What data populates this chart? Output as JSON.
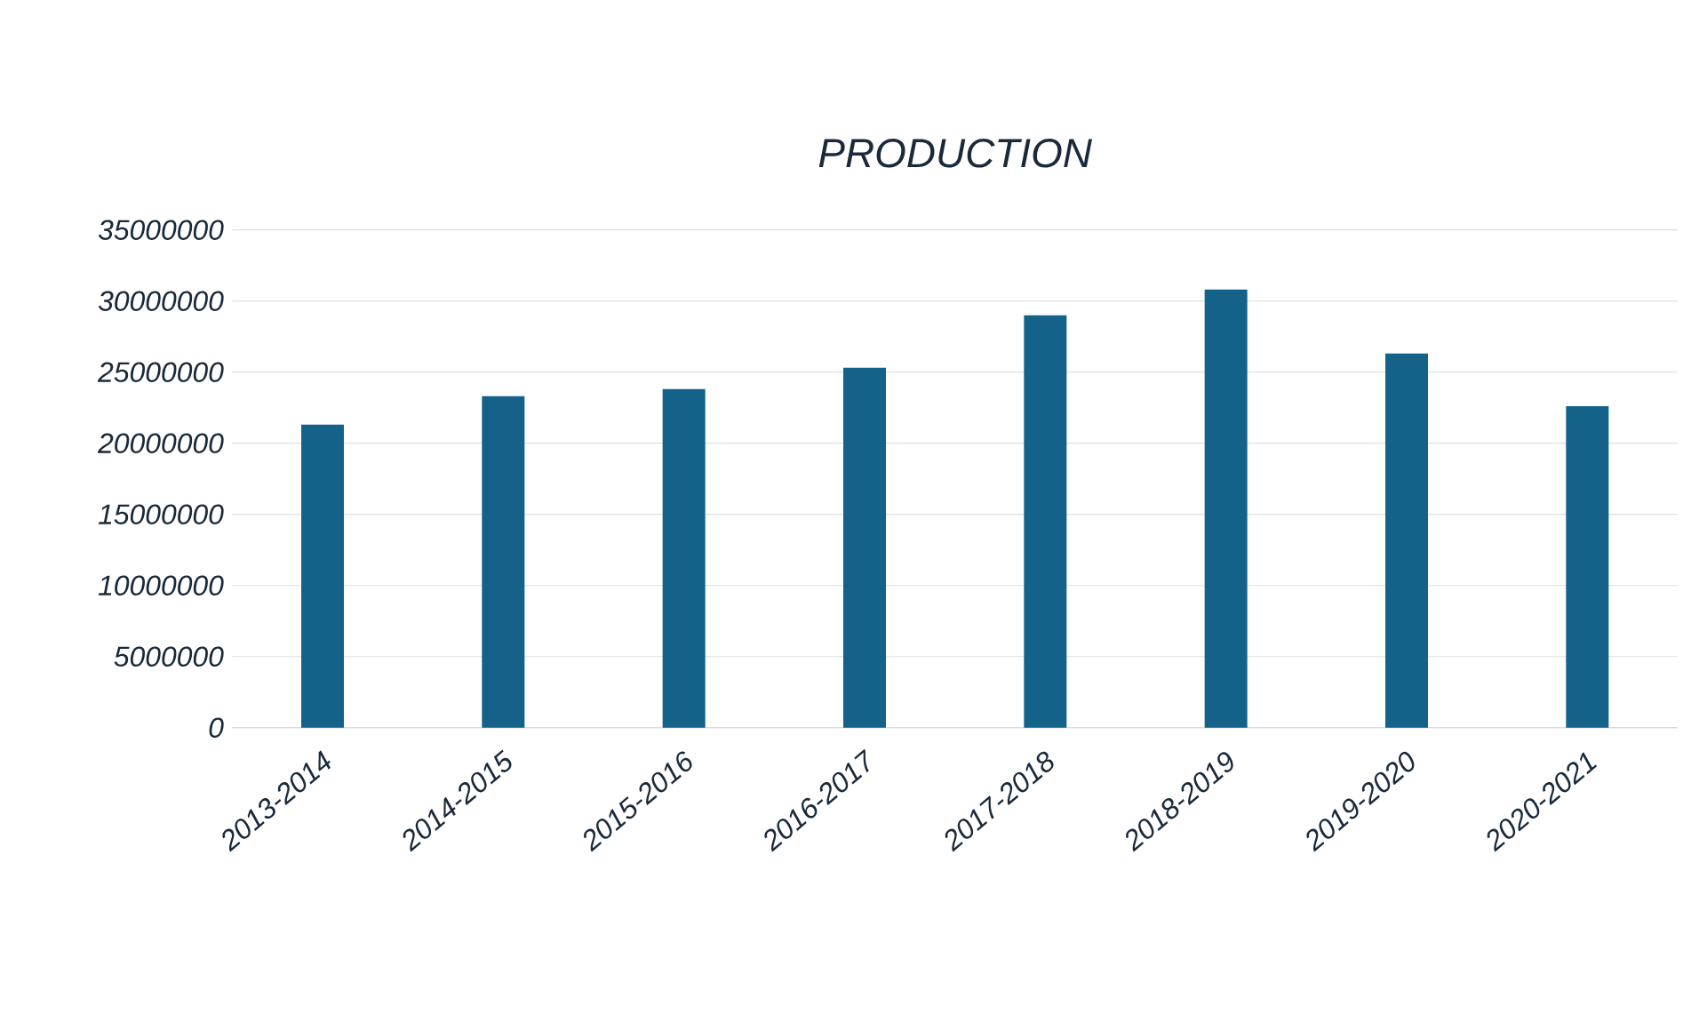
{
  "chart_data": {
    "type": "bar",
    "title": "PRODUCTION",
    "categories": [
      "2013-2014",
      "2014-2015",
      "2015-2016",
      "2016-2017",
      "2017-2018",
      "2018-2019",
      "2019-2020",
      "2020-2021"
    ],
    "values": [
      21300000,
      23300000,
      23800000,
      25300000,
      29000000,
      30800000,
      26300000,
      22600000
    ],
    "color": "#14628a",
    "ylim": [
      0,
      35000000
    ],
    "yticks": [
      0,
      5000000,
      10000000,
      15000000,
      20000000,
      25000000,
      30000000,
      35000000
    ],
    "grid": "y"
  }
}
